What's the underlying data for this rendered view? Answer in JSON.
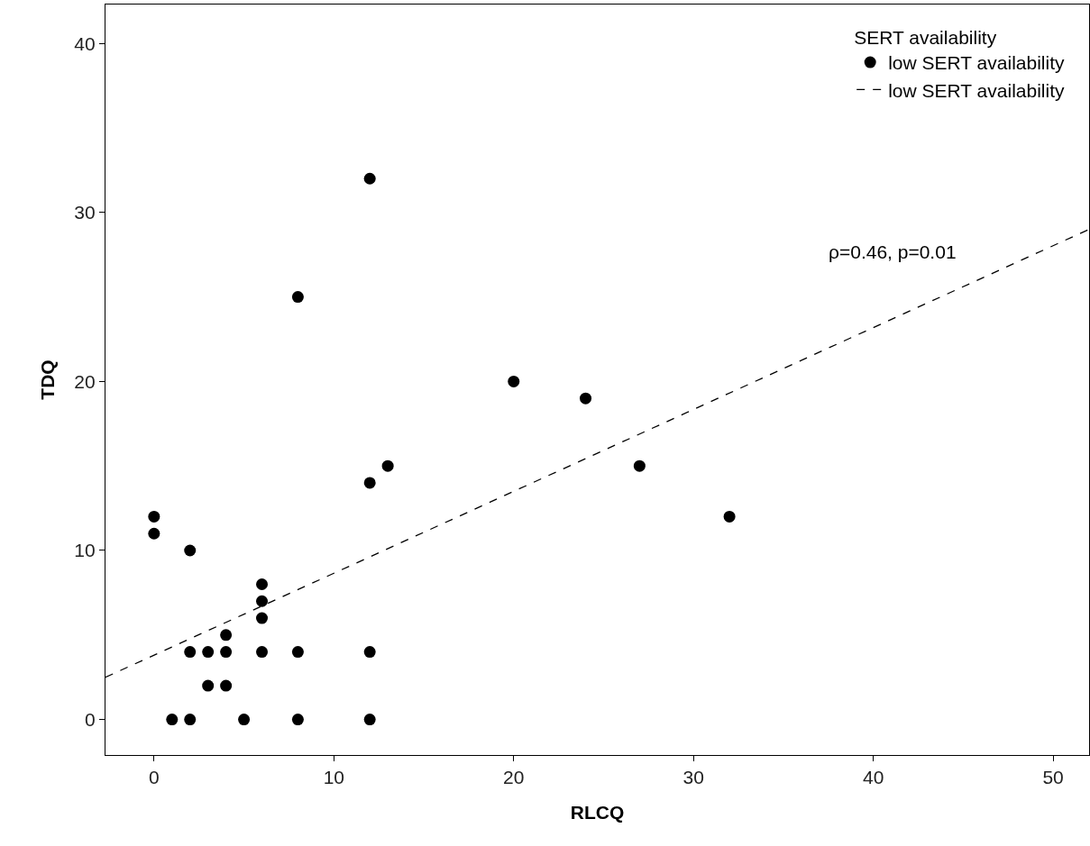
{
  "chart_data": {
    "type": "scatter",
    "xlabel": "RLCQ",
    "ylabel": "TDQ",
    "legend_title": "SERT availability",
    "legend": "top right",
    "grid": false,
    "marker": "circle",
    "xlim": [
      -2.7,
      52
    ],
    "xticks": [
      0,
      10,
      20,
      30,
      40,
      50
    ],
    "ylim": [
      -2.1,
      42.3
    ],
    "yticks": [
      0,
      10,
      20,
      30,
      40
    ],
    "annotations": [
      "ρ=0.46, p=0.01"
    ],
    "series": [
      {
        "name": "low SERT availability",
        "color": "#000000",
        "x": [
          0,
          0,
          2,
          2,
          3,
          4,
          4,
          3,
          4,
          1,
          2,
          5,
          6,
          6,
          6,
          6,
          8,
          8,
          8,
          12,
          12,
          13,
          12,
          12,
          20,
          24,
          27,
          32
        ],
        "values": [
          12,
          11,
          10,
          4,
          4,
          4,
          5,
          2,
          2,
          0,
          0,
          0,
          8,
          7,
          6,
          4,
          4,
          0,
          25,
          32,
          14,
          15,
          4,
          0,
          20,
          19,
          15,
          12
        ]
      },
      {
        "name": "low SERT availability",
        "type": "line",
        "marker": "none",
        "line_style": "dashed",
        "color": "#000000",
        "x": [
          -2.7,
          52
        ],
        "values": [
          2.5,
          29.0
        ]
      }
    ]
  }
}
